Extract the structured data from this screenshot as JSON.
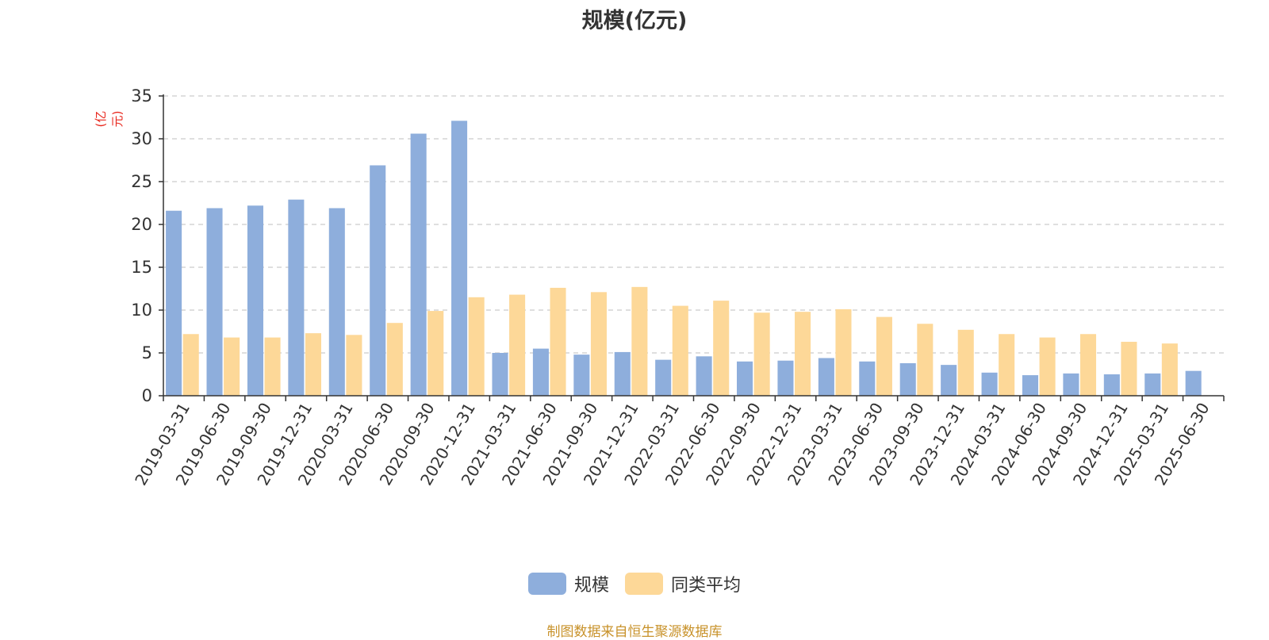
{
  "title": "规模(亿元)",
  "unit_label": "(亿元)",
  "source_note": "制图数据来自恒生聚源数据库",
  "colors": {
    "scale": "#8eaedc",
    "avg": "#fdd898",
    "axis": "#333333",
    "grid": "#cccccc",
    "unit": "#e8261c",
    "source": "#c8922a"
  },
  "chart_data": {
    "type": "bar",
    "title": "规模(亿元)",
    "ylabel": "(亿元)",
    "xlabel": "",
    "ylim": [
      0,
      35
    ],
    "yticks": [
      0,
      5,
      10,
      15,
      20,
      25,
      30,
      35
    ],
    "grid": true,
    "legend_position": "bottom",
    "categories": [
      "2019-03-31",
      "2019-06-30",
      "2019-09-30",
      "2019-12-31",
      "2020-03-31",
      "2020-06-30",
      "2020-09-30",
      "2020-12-31",
      "2021-03-31",
      "2021-06-30",
      "2021-09-30",
      "2021-12-31",
      "2022-03-31",
      "2022-06-30",
      "2022-09-30",
      "2022-12-31",
      "2023-03-31",
      "2023-06-30",
      "2023-09-30",
      "2023-12-31",
      "2024-03-31",
      "2024-06-30",
      "2024-09-30",
      "2024-12-31",
      "2025-03-31",
      "2025-06-30"
    ],
    "series": [
      {
        "name": "规模",
        "color": "#8eaedc",
        "values": [
          21.6,
          21.9,
          22.2,
          22.9,
          21.9,
          26.9,
          30.6,
          32.1,
          5.0,
          5.5,
          4.8,
          5.1,
          4.2,
          4.6,
          4.0,
          4.1,
          4.4,
          4.0,
          3.8,
          3.6,
          2.7,
          2.4,
          2.6,
          2.5,
          2.6,
          2.9
        ]
      },
      {
        "name": "同类平均",
        "color": "#fdd898",
        "values": [
          7.2,
          6.8,
          6.8,
          7.3,
          7.1,
          8.5,
          9.9,
          11.5,
          11.8,
          12.6,
          12.1,
          12.7,
          10.5,
          11.1,
          9.7,
          9.8,
          10.1,
          9.2,
          8.4,
          7.7,
          7.2,
          6.8,
          7.2,
          6.3,
          6.1,
          null
        ]
      }
    ]
  }
}
